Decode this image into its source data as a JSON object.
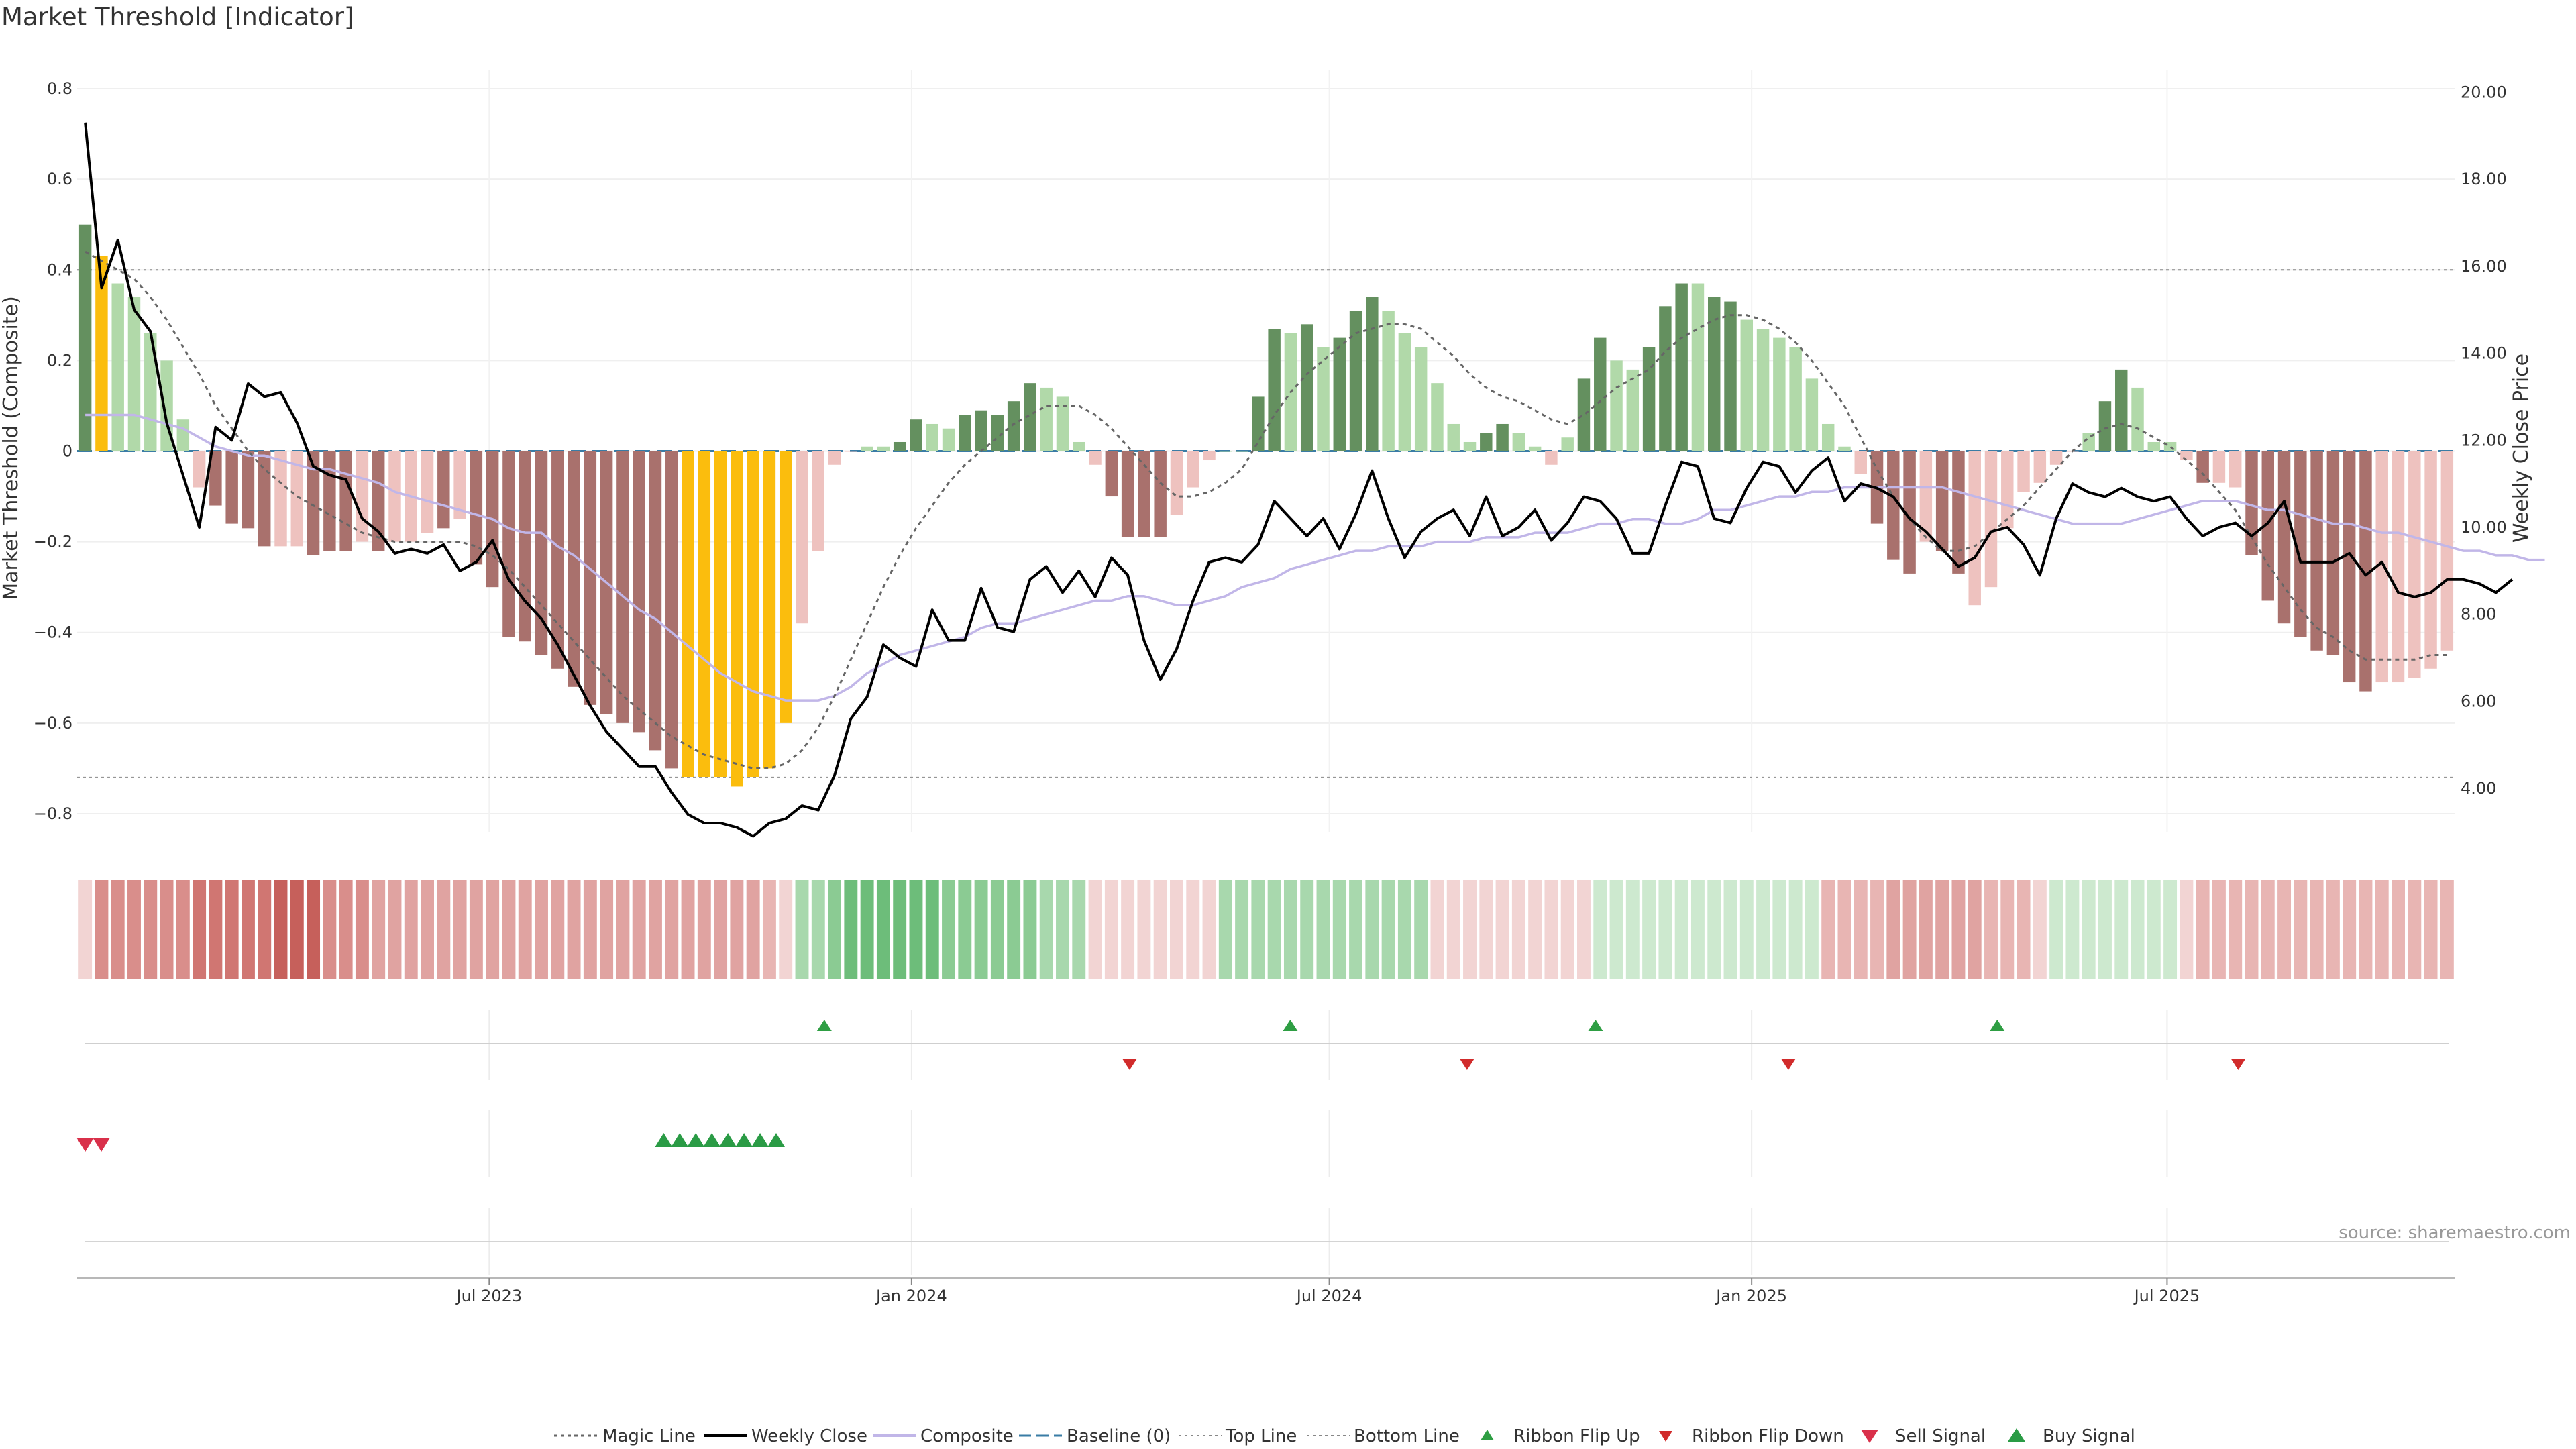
{
  "title": "Market Threshold [Indicator]",
  "source": "source: sharemaestro.com",
  "colors": {
    "strong_pos": "#64905f",
    "weak_pos": "#b1d9a9",
    "strong_neg": "#a9716d",
    "weak_neg": "#eec2bf",
    "extreme": "#fbbd0d",
    "price": "#000000",
    "composite": "#c1b6e8",
    "magic": "#666666",
    "baseline": "#3a7ca5",
    "flip_up": "#2e9e43",
    "flip_down": "#d12b2b",
    "sell": "#d9304a",
    "buy": "#2a9b45"
  },
  "chart_data": {
    "type": "bar",
    "title": "Market Threshold [Indicator]",
    "ylabel_left": "Market Threshold (Composite)",
    "ylabel_right": "Weekly Close Price",
    "ylim_left": [
      -0.84,
      0.84
    ],
    "ylim_right": [
      3.0,
      20.5
    ],
    "yticks_left": [
      "0.8",
      "0.6",
      "0.4",
      "0.2",
      "0",
      "−0.2",
      "−0.4",
      "−0.6",
      "−0.8"
    ],
    "yticks_right": [
      "20.00",
      "18.00",
      "16.00",
      "14.00",
      "12.00",
      "10.00",
      "8.00",
      "6.00",
      "4.00"
    ],
    "x_dates": [
      "2023-01-06",
      "2025-10-31"
    ],
    "x_ticks": [
      {
        "label": "Jul 2023",
        "date": "2023-07-01"
      },
      {
        "label": "Jan 2024",
        "date": "2024-01-01"
      },
      {
        "label": "Jul 2024",
        "date": "2024-07-01"
      },
      {
        "label": "Jan 2025",
        "date": "2025-01-01"
      },
      {
        "label": "Jul 2025",
        "date": "2025-07-01"
      }
    ],
    "top_line": 0.4,
    "bottom_line": -0.72,
    "baseline": 0,
    "grid": true,
    "legend_position": "bottom",
    "composite_bars": [
      0.5,
      0.43,
      0.37,
      0.34,
      0.26,
      0.2,
      0.07,
      -0.08,
      -0.12,
      -0.16,
      -0.17,
      -0.21,
      -0.21,
      -0.21,
      -0.23,
      -0.22,
      -0.22,
      -0.2,
      -0.22,
      -0.2,
      -0.2,
      -0.18,
      -0.17,
      -0.15,
      -0.25,
      -0.3,
      -0.41,
      -0.42,
      -0.45,
      -0.48,
      -0.52,
      -0.56,
      -0.58,
      -0.6,
      -0.62,
      -0.66,
      -0.7,
      -0.72,
      -0.72,
      -0.72,
      -0.74,
      -0.72,
      -0.7,
      -0.6,
      -0.38,
      -0.22,
      -0.03,
      0,
      0.01,
      0.01,
      0.02,
      0.07,
      0.06,
      0.05,
      0.08,
      0.09,
      0.08,
      0.11,
      0.15,
      0.14,
      0.12,
      0.02,
      -0.03,
      -0.1,
      -0.19,
      -0.19,
      -0.19,
      -0.14,
      -0.08,
      -0.02,
      0,
      0,
      0.12,
      0.27,
      0.26,
      0.28,
      0.23,
      0.25,
      0.31,
      0.34,
      0.31,
      0.26,
      0.23,
      0.15,
      0.06,
      0.02,
      0.04,
      0.06,
      0.04,
      0.01,
      -0.03,
      0.03,
      0.16,
      0.25,
      0.2,
      0.18,
      0.23,
      0.32,
      0.37,
      0.37,
      0.34,
      0.33,
      0.29,
      0.27,
      0.25,
      0.23,
      0.16,
      0.06,
      0.01,
      -0.05,
      -0.16,
      -0.24,
      -0.27,
      -0.2,
      -0.22,
      -0.27,
      -0.34,
      -0.3,
      -0.17,
      -0.09,
      -0.07,
      -0.03,
      0,
      0.04,
      0.11,
      0.18,
      0.14,
      0.02,
      0.02,
      -0.02,
      -0.07,
      -0.07,
      -0.08,
      -0.23,
      -0.33,
      -0.38,
      -0.41,
      -0.44,
      -0.45,
      -0.51,
      -0.53,
      -0.51,
      -0.51,
      -0.5,
      -0.48,
      -0.44
    ],
    "bar_categories": [
      "strong_pos",
      "extreme",
      "weak_pos",
      "weak_pos",
      "weak_pos",
      "weak_pos",
      "weak_pos",
      "weak_neg",
      "strong_neg",
      "strong_neg",
      "strong_neg",
      "strong_neg",
      "weak_neg",
      "weak_neg",
      "strong_neg",
      "strong_neg",
      "strong_neg",
      "weak_neg",
      "strong_neg",
      "weak_neg",
      "weak_neg",
      "weak_neg",
      "strong_neg",
      "weak_neg",
      "strong_neg",
      "strong_neg",
      "strong_neg",
      "strong_neg",
      "strong_neg",
      "strong_neg",
      "strong_neg",
      "strong_neg",
      "strong_neg",
      "strong_neg",
      "strong_neg",
      "strong_neg",
      "strong_neg",
      "extreme",
      "extreme",
      "extreme",
      "extreme",
      "extreme",
      "extreme",
      "extreme",
      "weak_neg",
      "weak_neg",
      "weak_neg",
      "weak_neg",
      "weak_pos",
      "weak_pos",
      "strong_pos",
      "strong_pos",
      "weak_pos",
      "weak_pos",
      "strong_pos",
      "strong_pos",
      "strong_pos",
      "strong_pos",
      "strong_pos",
      "weak_pos",
      "weak_pos",
      "weak_pos",
      "weak_neg",
      "strong_neg",
      "strong_neg",
      "strong_neg",
      "strong_neg",
      "weak_neg",
      "weak_neg",
      "weak_neg",
      "weak_pos",
      "weak_pos",
      "strong_pos",
      "strong_pos",
      "weak_pos",
      "strong_pos",
      "weak_pos",
      "strong_pos",
      "strong_pos",
      "strong_pos",
      "weak_pos",
      "weak_pos",
      "weak_pos",
      "weak_pos",
      "weak_pos",
      "weak_pos",
      "strong_pos",
      "strong_pos",
      "weak_pos",
      "weak_pos",
      "weak_neg",
      "weak_pos",
      "strong_pos",
      "strong_pos",
      "weak_pos",
      "weak_pos",
      "strong_pos",
      "strong_pos",
      "strong_pos",
      "weak_pos",
      "strong_pos",
      "strong_pos",
      "weak_pos",
      "weak_pos",
      "weak_pos",
      "weak_pos",
      "weak_pos",
      "weak_pos",
      "weak_pos",
      "weak_neg",
      "strong_neg",
      "strong_neg",
      "strong_neg",
      "weak_neg",
      "strong_neg",
      "strong_neg",
      "weak_neg",
      "weak_neg",
      "weak_neg",
      "weak_neg",
      "weak_neg",
      "weak_neg",
      "weak_neg",
      "weak_pos",
      "strong_pos",
      "strong_pos",
      "weak_pos",
      "weak_pos",
      "weak_pos",
      "weak_neg",
      "strong_neg",
      "weak_neg",
      "weak_neg",
      "strong_neg",
      "strong_neg",
      "strong_neg",
      "strong_neg",
      "strong_neg",
      "strong_neg",
      "strong_neg",
      "strong_neg",
      "weak_neg",
      "weak_neg",
      "weak_neg",
      "weak_neg",
      "weak_neg"
    ],
    "weekly_close": [
      19.3,
      15.5,
      16.6,
      15.0,
      14.5,
      12.4,
      11.2,
      10.0,
      12.3,
      12.0,
      13.3,
      13.0,
      13.1,
      12.4,
      11.4,
      11.2,
      11.1,
      10.2,
      9.9,
      9.4,
      9.5,
      9.4,
      9.6,
      9.0,
      9.2,
      9.7,
      8.8,
      8.3,
      7.9,
      7.3,
      6.6,
      5.9,
      5.3,
      4.9,
      4.5,
      4.5,
      3.9,
      3.4,
      3.2,
      3.2,
      3.1,
      2.9,
      3.2,
      3.3,
      3.6,
      3.5,
      4.3,
      5.6,
      6.1,
      7.3,
      7.0,
      6.8,
      8.1,
      7.4,
      7.4,
      8.6,
      7.7,
      7.6,
      8.8,
      9.1,
      8.5,
      9.0,
      8.4,
      9.3,
      8.9,
      7.4,
      6.5,
      7.2,
      8.3,
      9.2,
      9.3,
      9.2,
      9.6,
      10.6,
      10.2,
      9.8,
      10.2,
      9.5,
      10.3,
      11.3,
      10.2,
      9.3,
      9.9,
      10.2,
      10.4,
      9.8,
      10.7,
      9.8,
      10.0,
      10.4,
      9.7,
      10.1,
      10.7,
      10.6,
      10.2,
      9.4,
      9.4,
      10.5,
      11.5,
      11.4,
      10.2,
      10.1,
      10.9,
      11.5,
      11.4,
      10.8,
      11.3,
      11.6,
      10.6,
      11.0,
      10.9,
      10.7,
      10.2,
      9.9,
      9.5,
      9.1,
      9.3,
      9.9,
      10.0,
      9.6,
      8.9,
      10.2,
      11.0,
      10.8,
      10.7,
      10.9,
      10.7,
      10.6,
      10.7,
      10.2,
      9.8,
      10.0,
      10.1,
      9.8,
      10.1,
      10.6,
      9.2,
      9.2,
      9.2,
      9.4,
      8.9,
      9.2,
      8.5,
      8.4,
      8.5,
      8.8,
      8.8,
      8.7,
      8.5,
      8.8
    ],
    "composite_line": [
      0.08,
      0.08,
      0.08,
      0.08,
      0.07,
      0.06,
      0.05,
      0.03,
      0.01,
      0.0,
      -0.01,
      -0.01,
      -0.02,
      -0.03,
      -0.04,
      -0.04,
      -0.05,
      -0.06,
      -0.07,
      -0.09,
      -0.1,
      -0.11,
      -0.12,
      -0.13,
      -0.14,
      -0.15,
      -0.17,
      -0.18,
      -0.18,
      -0.21,
      -0.23,
      -0.26,
      -0.29,
      -0.32,
      -0.35,
      -0.37,
      -0.4,
      -0.43,
      -0.46,
      -0.49,
      -0.51,
      -0.53,
      -0.54,
      -0.55,
      -0.55,
      -0.55,
      -0.54,
      -0.52,
      -0.49,
      -0.47,
      -0.45,
      -0.44,
      -0.43,
      -0.42,
      -0.41,
      -0.39,
      -0.38,
      -0.38,
      -0.37,
      -0.36,
      -0.35,
      -0.34,
      -0.33,
      -0.33,
      -0.32,
      -0.32,
      -0.33,
      -0.34,
      -0.34,
      -0.33,
      -0.32,
      -0.3,
      -0.29,
      -0.28,
      -0.26,
      -0.25,
      -0.24,
      -0.23,
      -0.22,
      -0.22,
      -0.21,
      -0.21,
      -0.21,
      -0.2,
      -0.2,
      -0.2,
      -0.19,
      -0.19,
      -0.19,
      -0.18,
      -0.18,
      -0.18,
      -0.17,
      -0.16,
      -0.16,
      -0.15,
      -0.15,
      -0.16,
      -0.16,
      -0.15,
      -0.13,
      -0.13,
      -0.12,
      -0.11,
      -0.1,
      -0.1,
      -0.09,
      -0.09,
      -0.08,
      -0.08,
      -0.08,
      -0.08,
      -0.08,
      -0.08,
      -0.08,
      -0.09,
      -0.1,
      -0.11,
      -0.12,
      -0.13,
      -0.14,
      -0.15,
      -0.16,
      -0.16,
      -0.16,
      -0.16,
      -0.15,
      -0.14,
      -0.13,
      -0.12,
      -0.11,
      -0.11,
      -0.11,
      -0.12,
      -0.13,
      -0.13,
      -0.14,
      -0.15,
      -0.16,
      -0.16,
      -0.17,
      -0.18,
      -0.18,
      -0.19,
      -0.2,
      -0.21,
      -0.22,
      -0.22,
      -0.23,
      -0.23,
      -0.24,
      -0.24
    ],
    "magic_line": [
      0.44,
      0.42,
      0.4,
      0.38,
      0.34,
      0.29,
      0.23,
      0.17,
      0.1,
      0.05,
      0.0,
      -0.04,
      -0.07,
      -0.1,
      -0.12,
      -0.14,
      -0.16,
      -0.18,
      -0.19,
      -0.2,
      -0.2,
      -0.2,
      -0.2,
      -0.2,
      -0.21,
      -0.23,
      -0.26,
      -0.3,
      -0.34,
      -0.38,
      -0.42,
      -0.46,
      -0.5,
      -0.54,
      -0.57,
      -0.6,
      -0.63,
      -0.65,
      -0.67,
      -0.68,
      -0.69,
      -0.7,
      -0.7,
      -0.69,
      -0.66,
      -0.61,
      -0.54,
      -0.46,
      -0.38,
      -0.3,
      -0.23,
      -0.17,
      -0.12,
      -0.07,
      -0.03,
      0.0,
      0.03,
      0.06,
      0.08,
      0.1,
      0.1,
      0.1,
      0.08,
      0.05,
      0.01,
      -0.03,
      -0.07,
      -0.1,
      -0.1,
      -0.09,
      -0.07,
      -0.04,
      0.02,
      0.08,
      0.13,
      0.17,
      0.2,
      0.23,
      0.26,
      0.27,
      0.28,
      0.28,
      0.27,
      0.24,
      0.21,
      0.17,
      0.14,
      0.12,
      0.11,
      0.09,
      0.07,
      0.06,
      0.08,
      0.11,
      0.14,
      0.16,
      0.18,
      0.22,
      0.25,
      0.27,
      0.29,
      0.3,
      0.3,
      0.29,
      0.27,
      0.24,
      0.2,
      0.15,
      0.1,
      0.03,
      -0.04,
      -0.1,
      -0.15,
      -0.19,
      -0.22,
      -0.22,
      -0.21,
      -0.18,
      -0.15,
      -0.12,
      -0.08,
      -0.04,
      0.0,
      0.03,
      0.05,
      0.06,
      0.05,
      0.03,
      0.01,
      -0.02,
      -0.05,
      -0.09,
      -0.13,
      -0.19,
      -0.25,
      -0.3,
      -0.35,
      -0.39,
      -0.41,
      -0.44,
      -0.46,
      -0.46,
      -0.46,
      -0.46,
      -0.45,
      -0.45
    ],
    "ribbon": [
      -1,
      -4,
      -4,
      -4,
      -4,
      -4,
      -4,
      -5,
      -5,
      -5,
      -5,
      -5,
      -6,
      -6,
      -6,
      -4,
      -4,
      -4,
      -3,
      -3,
      -3,
      -3,
      -3,
      -3,
      -3,
      -3,
      -3,
      -3,
      -3,
      -3,
      -3,
      -3,
      -3,
      -3,
      -3,
      -3,
      -3,
      -3,
      -3,
      -3,
      -3,
      -3,
      -2,
      -1,
      2,
      2,
      3,
      4,
      4,
      4,
      4,
      4,
      4,
      3,
      3,
      3,
      3,
      3,
      3,
      2,
      2,
      2,
      -1,
      -1,
      -1,
      -1,
      -1,
      -1,
      -1,
      -1,
      2,
      2,
      2,
      2,
      2,
      2,
      2,
      2,
      2,
      2,
      2,
      2,
      2,
      -1,
      -1,
      -1,
      -1,
      -1,
      -1,
      -1,
      -1,
      -1,
      -1,
      1,
      1,
      1,
      1,
      1,
      1,
      1,
      1,
      1,
      1,
      1,
      1,
      1,
      1,
      -2,
      -2,
      -2,
      -2,
      -3,
      -3,
      -3,
      -3,
      -3,
      -3,
      -2,
      -2,
      -2,
      -1,
      1,
      1,
      1,
      1,
      1,
      1,
      1,
      1,
      -1,
      -2,
      -2,
      -2,
      -2,
      -2,
      -2,
      -2,
      -2,
      -2,
      -2,
      -2,
      -2,
      -2,
      -2,
      -2,
      -2
    ],
    "ribbon_flip_up_dates": [
      "2023-11-24",
      "2024-06-14",
      "2024-10-25",
      "2025-04-18"
    ],
    "ribbon_flip_down_dates": [
      "2024-04-05",
      "2024-08-30",
      "2025-01-17",
      "2025-08-01"
    ],
    "sell_signal_dates": [
      "2023-01-06",
      "2023-01-13"
    ],
    "buy_signal_dates": [
      "2023-09-15",
      "2023-09-22",
      "2023-09-29",
      "2023-10-06",
      "2023-10-13",
      "2023-10-20",
      "2023-10-27",
      "2023-11-03"
    ],
    "legend": [
      "Magic Line",
      "Weekly Close",
      "Composite",
      "Baseline (0)",
      "Top Line",
      "Bottom Line",
      "Ribbon Flip Up",
      "Ribbon Flip Down",
      "Sell Signal",
      "Buy Signal"
    ]
  }
}
